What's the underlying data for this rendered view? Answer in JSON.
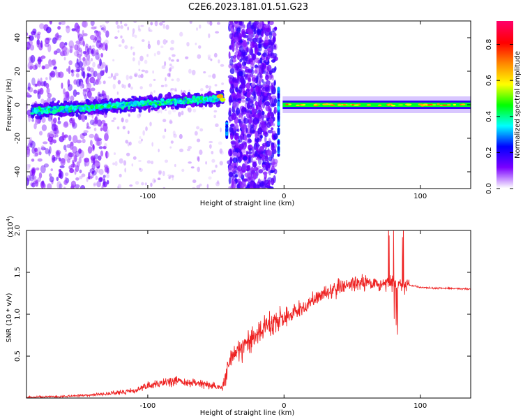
{
  "page_title": "C2E6.2023.181.01.51.G23",
  "chart_data": [
    {
      "type": "heatmap",
      "xlabel": "Height of straight line (km)",
      "ylabel": "Frequency (Hz)",
      "xlim": [
        -189,
        137
      ],
      "ylim": [
        -50,
        50
      ],
      "x_ticks": [
        -100,
        0,
        100
      ],
      "x_tick_labels": [
        "-100",
        "0",
        "100"
      ],
      "y_ticks": [
        -40,
        -20,
        0,
        20,
        40
      ],
      "y_tick_labels": [
        "-40",
        "-20",
        "0",
        "20",
        "40"
      ],
      "grid": false,
      "colorbar": {
        "label": "Normalized spectral amplitude",
        "range": [
          0,
          0.93
        ],
        "ticks": [
          0.0,
          0.2,
          0.4,
          0.6,
          0.8
        ],
        "tick_labels": [
          "0.0",
          "0.2",
          "0.4",
          "0.6",
          "0.8"
        ],
        "colors": [
          "#ffffff",
          "#7b00ff",
          "#0000ff",
          "#00ffff",
          "#00ff00",
          "#ffff00",
          "#ff8800",
          "#ff0000",
          "#ff0066"
        ]
      },
      "features": [
        {
          "name": "band",
          "x": [
            -189,
            -55
          ],
          "center_hz": [
            -4,
            3
          ],
          "amplitude": 0.45
        },
        {
          "name": "band",
          "x": [
            -55,
            -45
          ],
          "center_hz": [
            3,
            6
          ],
          "amplitude": 0.7
        },
        {
          "name": "band",
          "x": [
            -2,
            137
          ],
          "center_hz": [
            0,
            0
          ],
          "amplitude": 0.75
        }
      ]
    },
    {
      "type": "line",
      "xlabel": "Height of straight line (km)",
      "ylabel": "SNR (10 * v/v)",
      "y_multiplier_label": "(x10",
      "y_multiplier_exp": "4",
      "xlim": [
        -189,
        137
      ],
      "ylim": [
        0,
        2.0
      ],
      "x_ticks": [
        -100,
        0,
        100
      ],
      "x_tick_labels": [
        "-100",
        "0",
        "100"
      ],
      "y_ticks": [
        0.5,
        1.0,
        1.5,
        2.0
      ],
      "y_tick_labels": [
        "0.5",
        "1.0",
        "1.5",
        "2.0"
      ],
      "line_color": "#ee2222",
      "grid": false,
      "series": [
        {
          "x": [
            -189,
            -160,
            -130,
            -110,
            -100,
            -80,
            -60,
            -45,
            -40,
            -35,
            -30,
            -20,
            -10,
            0,
            10,
            20,
            30,
            40,
            50,
            60,
            70,
            80,
            85,
            90,
            92,
            100,
            110,
            120,
            137
          ],
          "y": [
            0.01,
            0.02,
            0.05,
            0.09,
            0.15,
            0.2,
            0.17,
            0.12,
            0.45,
            0.55,
            0.6,
            0.75,
            0.9,
            0.95,
            1.05,
            1.15,
            1.25,
            1.32,
            1.35,
            1.37,
            1.36,
            1.38,
            1.35,
            1.35,
            1.35,
            1.32,
            1.31,
            1.31,
            1.3
          ]
        }
      ]
    }
  ]
}
